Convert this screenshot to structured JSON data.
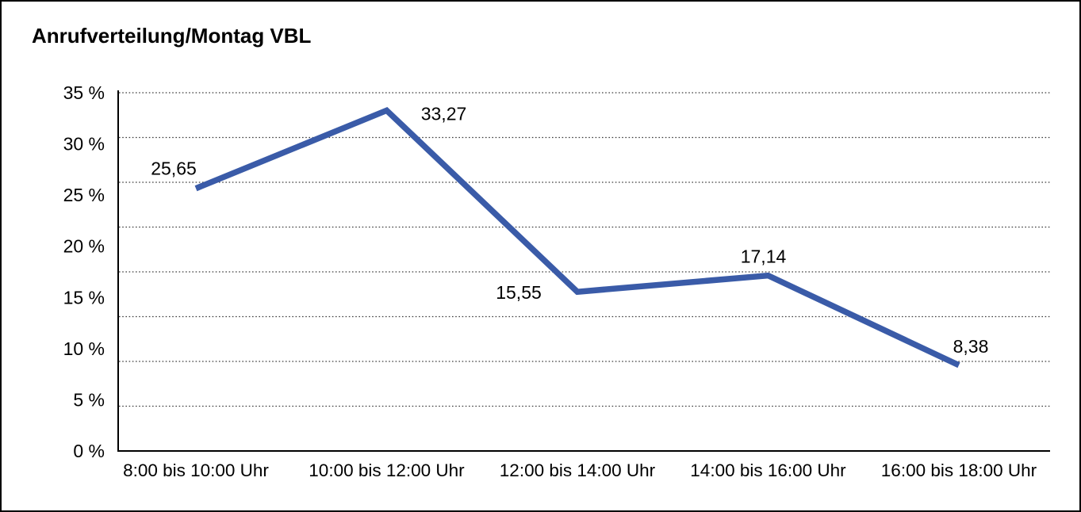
{
  "window": {
    "background_color": "#ffffff",
    "frame_color": "#000000"
  },
  "chart_data": {
    "type": "line",
    "title": "Anrufverteilung/Montag VBL",
    "categories": [
      "8:00 bis 10:00 Uhr",
      "10:00 bis 12:00 Uhr",
      "12:00 bis 14:00 Uhr",
      "14:00 bis 16:00 Uhr",
      "16:00 bis 18:00 Uhr"
    ],
    "values": [
      25.65,
      33.27,
      15.55,
      17.14,
      8.38
    ],
    "value_labels": [
      "25,65",
      "33,27",
      "15,55",
      "17,14",
      "8,38"
    ],
    "ytick_values": [
      0,
      5,
      10,
      15,
      20,
      25,
      30,
      35
    ],
    "ytick_labels": [
      "0 %",
      "5 %",
      "10 %",
      "15 %",
      "20 %",
      "25 %",
      "30 %",
      "35 %"
    ],
    "ylim": [
      0,
      35
    ],
    "xlabel": "",
    "ylabel": "",
    "unit": "%",
    "grid": "horizontal-dotted",
    "gridline_divisions": 8,
    "legend": "none",
    "line_color": "#3A5BA8",
    "gridline_color": "#3c3c3c",
    "axis_color": "#000000",
    "text_color": "#000000"
  }
}
